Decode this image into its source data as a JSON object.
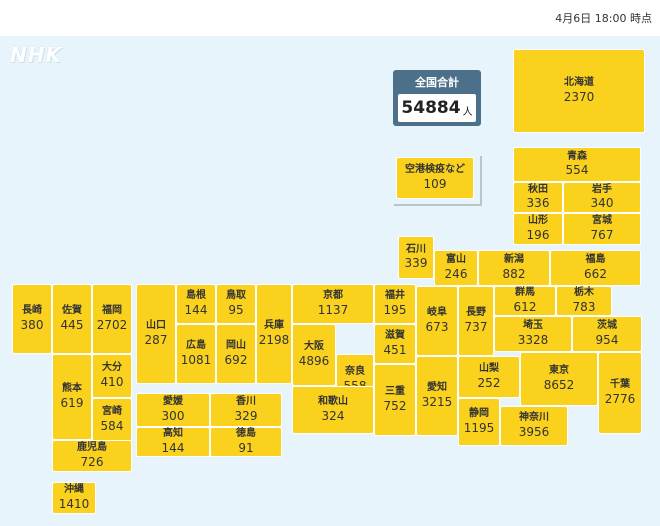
{
  "header": {
    "timestamp": "4月6日 18:00 時点"
  },
  "logo": "NHK",
  "total": {
    "label": "全国合計",
    "value": "54884",
    "unit": "人"
  },
  "airport": {
    "name": "空港検疫など",
    "value": "109"
  },
  "prefectures": [
    {
      "id": "hokkaido",
      "name": "北海道",
      "value": "2370"
    },
    {
      "id": "aomori",
      "name": "青森",
      "value": "554"
    },
    {
      "id": "akita",
      "name": "秋田",
      "value": "336"
    },
    {
      "id": "iwate",
      "name": "岩手",
      "value": "340"
    },
    {
      "id": "yamagata",
      "name": "山形",
      "value": "196"
    },
    {
      "id": "miyagi",
      "name": "宮城",
      "value": "767"
    },
    {
      "id": "ishikawa",
      "name": "石川",
      "value": "339"
    },
    {
      "id": "toyama",
      "name": "富山",
      "value": "246"
    },
    {
      "id": "niigata",
      "name": "新潟",
      "value": "882"
    },
    {
      "id": "fukushima",
      "name": "福島",
      "value": "662"
    },
    {
      "id": "nagasaki",
      "name": "長崎",
      "value": "380"
    },
    {
      "id": "saga",
      "name": "佐賀",
      "value": "445"
    },
    {
      "id": "fukuoka",
      "name": "福岡",
      "value": "2702"
    },
    {
      "id": "yamaguchi",
      "name": "山口",
      "value": "287"
    },
    {
      "id": "shimane",
      "name": "島根",
      "value": "144"
    },
    {
      "id": "tottori",
      "name": "鳥取",
      "value": "95"
    },
    {
      "id": "hyogo",
      "name": "兵庫",
      "value": "2198"
    },
    {
      "id": "kyoto",
      "name": "京都",
      "value": "1137"
    },
    {
      "id": "fukui",
      "name": "福井",
      "value": "195"
    },
    {
      "id": "gifu",
      "name": "岐阜",
      "value": "673"
    },
    {
      "id": "nagano",
      "name": "長野",
      "value": "737"
    },
    {
      "id": "gunma",
      "name": "群馬",
      "value": "612"
    },
    {
      "id": "tochigi",
      "name": "栃木",
      "value": "783"
    },
    {
      "id": "ibaraki",
      "name": "茨城",
      "value": "954"
    },
    {
      "id": "hiroshima",
      "name": "広島",
      "value": "1081"
    },
    {
      "id": "okayama",
      "name": "岡山",
      "value": "692"
    },
    {
      "id": "osaka",
      "name": "大阪",
      "value": "4896"
    },
    {
      "id": "shiga",
      "name": "滋賀",
      "value": "451"
    },
    {
      "id": "saitama",
      "name": "埼玉",
      "value": "3328"
    },
    {
      "id": "kumamoto",
      "name": "熊本",
      "value": "619"
    },
    {
      "id": "oita",
      "name": "大分",
      "value": "410"
    },
    {
      "id": "miyazaki",
      "name": "宮崎",
      "value": "584"
    },
    {
      "id": "nara",
      "name": "奈良",
      "value": "558"
    },
    {
      "id": "aichi",
      "name": "愛知",
      "value": "3215"
    },
    {
      "id": "yamanashi",
      "name": "山梨",
      "value": "252"
    },
    {
      "id": "tokyo",
      "name": "東京",
      "value": "8652"
    },
    {
      "id": "chiba",
      "name": "千葉",
      "value": "2776"
    },
    {
      "id": "ehime",
      "name": "愛媛",
      "value": "300"
    },
    {
      "id": "kagawa",
      "name": "香川",
      "value": "329"
    },
    {
      "id": "mie",
      "name": "三重",
      "value": "752"
    },
    {
      "id": "wakayama",
      "name": "和歌山",
      "value": "324"
    },
    {
      "id": "kochi",
      "name": "高知",
      "value": "144"
    },
    {
      "id": "tokushima",
      "name": "徳島",
      "value": "91"
    },
    {
      "id": "shizuoka",
      "name": "静岡",
      "value": "1195"
    },
    {
      "id": "kanagawa",
      "name": "神奈川",
      "value": "3956"
    },
    {
      "id": "kagoshima",
      "name": "鹿児島",
      "value": "726"
    },
    {
      "id": "okinawa",
      "name": "沖縄",
      "value": "1410"
    }
  ]
}
